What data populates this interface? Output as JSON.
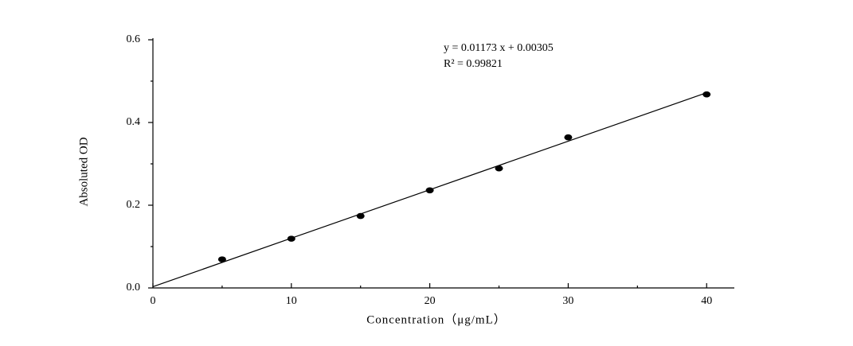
{
  "chart_data": {
    "type": "scatter",
    "x_label": "Concentration（μg/mL）",
    "y_label": "Absoluted OD",
    "annotations": [
      "y = 0.01173 x + 0.00305",
      "R² = 0.99821"
    ],
    "x": [
      5,
      10,
      15,
      20,
      25,
      30,
      40
    ],
    "values": [
      0.069,
      0.119,
      0.174,
      0.236,
      0.289,
      0.364,
      0.468
    ],
    "color": "#000000",
    "fit": {
      "x": [
        0,
        40
      ],
      "values": [
        0.003,
        0.472
      ],
      "color": "#000000"
    },
    "xlim": [
      0,
      42
    ],
    "ylim": [
      0,
      0.6
    ],
    "xticks": [
      0,
      10,
      20,
      30,
      40
    ],
    "x_minor_ticks": [
      5,
      15,
      25,
      35
    ],
    "yticks": [
      {
        "value": 0,
        "label": "0.0"
      },
      0.2,
      0.4,
      0.6
    ],
    "y_minor_ticks": [
      0.1,
      0.3,
      0.5
    ]
  }
}
